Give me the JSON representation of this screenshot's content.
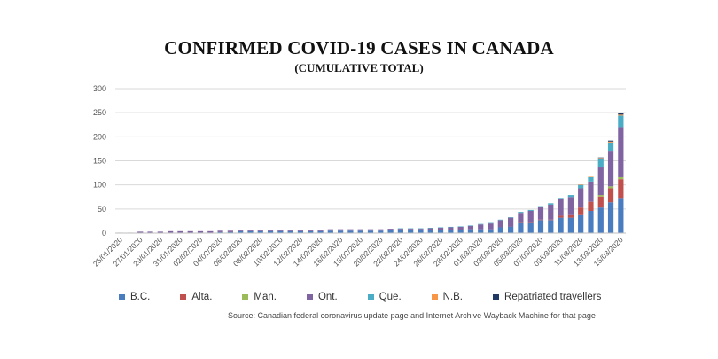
{
  "chart_data": {
    "type": "bar",
    "stacked": true,
    "title": "CONFIRMED COVID-19 CASES IN CANADA",
    "subtitle": "(CUMULATIVE TOTAL)",
    "ylim": [
      0,
      300
    ],
    "yticks": [
      "0",
      "50",
      "100",
      "150",
      "200",
      "250",
      "300"
    ],
    "grid": true,
    "legend_position": "bottom",
    "categories": [
      "25/01/2020",
      "26/01/2020",
      "27/01/2020",
      "28/01/2020",
      "29/01/2020",
      "30/01/2020",
      "31/01/2020",
      "01/02/2020",
      "02/02/2020",
      "03/02/2020",
      "04/02/2020",
      "05/02/2020",
      "06/02/2020",
      "07/02/2020",
      "08/02/2020",
      "09/02/2020",
      "10/02/2020",
      "11/02/2020",
      "12/02/2020",
      "13/02/2020",
      "14/02/2020",
      "15/02/2020",
      "16/02/2020",
      "17/02/2020",
      "18/02/2020",
      "19/02/2020",
      "20/02/2020",
      "21/02/2020",
      "22/02/2020",
      "23/02/2020",
      "24/02/2020",
      "25/02/2020",
      "26/02/2020",
      "27/02/2020",
      "28/02/2020",
      "29/02/2020",
      "01/03/2020",
      "02/03/2020",
      "03/03/2020",
      "04/03/2020",
      "05/03/2020",
      "06/03/2020",
      "07/03/2020",
      "08/03/2020",
      "09/03/2020",
      "10/03/2020",
      "11/03/2020",
      "12/03/2020",
      "13/03/2020",
      "14/03/2020",
      "15/03/2020"
    ],
    "tick_labels": [
      "25/01/2020",
      "27/01/2020",
      "29/01/2020",
      "31/01/2020",
      "02/02/2020",
      "04/02/2020",
      "06/02/2020",
      "08/02/2020",
      "10/02/2020",
      "12/02/2020",
      "14/02/2020",
      "16/02/2020",
      "18/02/2020",
      "20/02/2020",
      "22/02/2020",
      "24/02/2020",
      "26/02/2020",
      "28/02/2020",
      "01/03/2020",
      "03/03/2020",
      "05/03/2020",
      "07/03/2020",
      "09/03/2020",
      "11/03/2020",
      "13/03/2020",
      "15/03/2020"
    ],
    "series": [
      {
        "name": "B.C.",
        "color": "#4a7cc0",
        "values": [
          0,
          0,
          1,
          1,
          1,
          1,
          1,
          1,
          1,
          1,
          2,
          2,
          4,
          4,
          4,
          4,
          4,
          4,
          4,
          4,
          4,
          5,
          5,
          5,
          5,
          5,
          5,
          6,
          6,
          6,
          6,
          7,
          7,
          7,
          7,
          8,
          8,
          8,
          12,
          13,
          21,
          21,
          27,
          27,
          32,
          32,
          39,
          46,
          53,
          64,
          73
        ]
      },
      {
        "name": "Alta.",
        "color": "#c0504d",
        "values": [
          0,
          0,
          0,
          0,
          0,
          0,
          0,
          0,
          0,
          0,
          0,
          0,
          0,
          0,
          0,
          0,
          0,
          0,
          0,
          0,
          0,
          0,
          0,
          0,
          0,
          0,
          0,
          0,
          0,
          0,
          0,
          0,
          0,
          0,
          0,
          0,
          0,
          0,
          0,
          0,
          1,
          1,
          1,
          1,
          4,
          7,
          14,
          19,
          23,
          29,
          39
        ]
      },
      {
        "name": "Man.",
        "color": "#9bbb59",
        "values": [
          0,
          0,
          0,
          0,
          0,
          0,
          0,
          0,
          0,
          0,
          0,
          0,
          0,
          0,
          0,
          0,
          0,
          0,
          0,
          0,
          0,
          0,
          0,
          0,
          0,
          0,
          0,
          0,
          0,
          0,
          0,
          0,
          0,
          0,
          0,
          0,
          0,
          0,
          0,
          0,
          0,
          0,
          0,
          0,
          0,
          0,
          0,
          0,
          3,
          4,
          4
        ]
      },
      {
        "name": "Ont.",
        "color": "#8064a2",
        "values": [
          1,
          1,
          2,
          2,
          2,
          3,
          3,
          3,
          3,
          3,
          3,
          3,
          3,
          3,
          3,
          3,
          3,
          3,
          3,
          3,
          3,
          3,
          3,
          3,
          3,
          3,
          3,
          3,
          3,
          3,
          3,
          3,
          4,
          5,
          6,
          7,
          10,
          12,
          15,
          19,
          20,
          24,
          26,
          31,
          34,
          36,
          40,
          42,
          59,
          74,
          104
        ]
      },
      {
        "name": "Que.",
        "color": "#4bacc6",
        "values": [
          0,
          0,
          0,
          0,
          0,
          0,
          0,
          0,
          0,
          0,
          0,
          0,
          0,
          0,
          0,
          0,
          0,
          0,
          0,
          0,
          0,
          0,
          0,
          0,
          0,
          0,
          0,
          0,
          1,
          1,
          1,
          1,
          1,
          1,
          1,
          1,
          1,
          1,
          1,
          1,
          2,
          2,
          2,
          3,
          3,
          4,
          7,
          9,
          17,
          17,
          24
        ]
      },
      {
        "name": "N.B.",
        "color": "#f79646",
        "values": [
          0,
          0,
          0,
          0,
          0,
          0,
          0,
          0,
          0,
          0,
          0,
          0,
          0,
          0,
          0,
          0,
          0,
          0,
          0,
          0,
          0,
          0,
          0,
          0,
          0,
          0,
          0,
          0,
          0,
          0,
          0,
          0,
          0,
          0,
          0,
          0,
          0,
          0,
          0,
          0,
          0,
          0,
          0,
          0,
          0,
          0,
          1,
          1,
          1,
          2,
          2
        ]
      },
      {
        "name": "Repatriated travellers",
        "color": "#1f3864",
        "values": [
          0,
          0,
          0,
          0,
          0,
          0,
          0,
          0,
          0,
          0,
          0,
          0,
          0,
          0,
          0,
          0,
          0,
          0,
          0,
          0,
          0,
          0,
          0,
          0,
          0,
          0,
          0,
          0,
          0,
          0,
          0,
          0,
          0,
          0,
          0,
          0,
          0,
          0,
          0,
          0,
          0,
          0,
          0,
          0,
          0,
          0,
          0,
          0,
          1,
          2,
          3
        ]
      }
    ],
    "source": "Source:  Canadian federal coronavirus update page and Internet  Archive Wayback Machine for that page"
  }
}
